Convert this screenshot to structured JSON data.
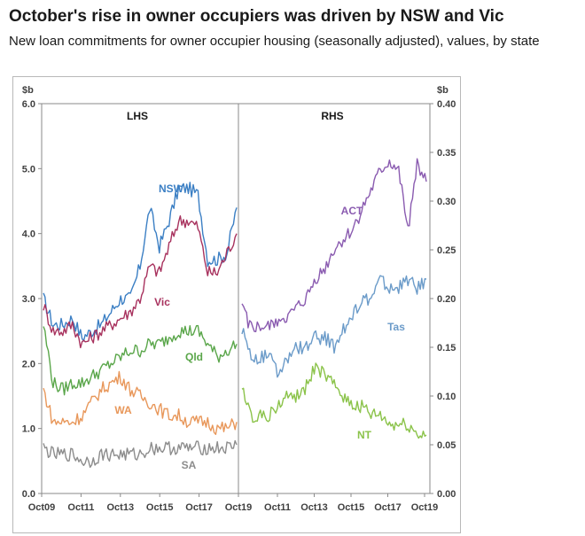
{
  "title": "October's rise in owner occupiers was driven by NSW and Vic",
  "subtitle": "New loan commitments for owner occupier housing (seasonally adjusted), values, by state",
  "chart_data": [
    {
      "type": "line",
      "panel": "LHS",
      "panel_label": "LHS",
      "unit": "$b",
      "ylim": [
        0,
        6
      ],
      "yticks": [
        "0.0",
        "1.0",
        "2.0",
        "3.0",
        "4.0",
        "5.0",
        "6.0"
      ],
      "xticks": [
        "Oct09",
        "Oct11",
        "Oct13",
        "Oct15",
        "Oct17",
        "Oct19"
      ],
      "x_dates": [
        "Oct09",
        "Apr10",
        "Oct10",
        "Apr11",
        "Oct11",
        "Apr12",
        "Oct12",
        "Apr13",
        "Oct13",
        "Apr14",
        "Oct14",
        "Apr15",
        "Oct15",
        "Apr16",
        "Oct16",
        "Apr17",
        "Oct17",
        "Apr18",
        "Oct18",
        "Apr19",
        "Oct19"
      ],
      "series": [
        {
          "name": "NSW",
          "color": "#3b7fc4",
          "values": [
            3.0,
            2.6,
            2.6,
            2.7,
            2.4,
            2.5,
            2.6,
            2.8,
            3.0,
            3.0,
            3.5,
            4.4,
            3.8,
            4.2,
            4.7,
            4.7,
            4.6,
            3.6,
            3.6,
            3.7,
            4.4
          ]
        },
        {
          "name": "Vic",
          "color": "#a8325e",
          "values": [
            2.9,
            2.5,
            2.5,
            2.6,
            2.3,
            2.4,
            2.5,
            2.6,
            2.7,
            2.8,
            3.0,
            3.5,
            3.4,
            3.8,
            4.2,
            4.2,
            4.1,
            3.4,
            3.4,
            3.7,
            4.0
          ]
        },
        {
          "name": "Qld",
          "color": "#5aa64a",
          "values": [
            2.6,
            1.7,
            1.6,
            1.7,
            1.7,
            1.8,
            1.9,
            2.0,
            2.1,
            2.2,
            2.2,
            2.3,
            2.3,
            2.4,
            2.5,
            2.5,
            2.5,
            2.3,
            2.1,
            2.2,
            2.3
          ]
        },
        {
          "name": "WA",
          "color": "#e8975a",
          "values": [
            1.6,
            1.1,
            1.1,
            1.1,
            1.2,
            1.4,
            1.6,
            1.7,
            1.8,
            1.6,
            1.5,
            1.4,
            1.3,
            1.2,
            1.2,
            1.1,
            1.1,
            1.1,
            1.0,
            1.0,
            1.1
          ]
        },
        {
          "name": "SA",
          "color": "#8c8c8c",
          "values": [
            0.7,
            0.6,
            0.6,
            0.6,
            0.5,
            0.5,
            0.6,
            0.6,
            0.6,
            0.6,
            0.6,
            0.7,
            0.7,
            0.7,
            0.7,
            0.7,
            0.7,
            0.7,
            0.7,
            0.7,
            0.75
          ]
        }
      ]
    },
    {
      "type": "line",
      "panel": "RHS",
      "panel_label": "RHS",
      "unit": "$b",
      "ylim": [
        0,
        0.4
      ],
      "yticks": [
        "0.00",
        "0.05",
        "0.10",
        "0.15",
        "0.20",
        "0.25",
        "0.30",
        "0.35",
        "0.40"
      ],
      "xticks": [
        "Oct11",
        "Oct13",
        "Oct15",
        "Oct17",
        "Oct19"
      ],
      "x_dates": [
        "Oct09",
        "Apr10",
        "Oct10",
        "Apr11",
        "Oct11",
        "Apr12",
        "Oct12",
        "Apr13",
        "Oct13",
        "Apr14",
        "Oct14",
        "Apr15",
        "Oct15",
        "Apr16",
        "Oct16",
        "Apr17",
        "Oct17",
        "Apr18",
        "Oct18",
        "Apr19",
        "Oct19"
      ],
      "series": [
        {
          "name": "ACT",
          "color": "#8a5bb0",
          "values": [
            0.19,
            0.17,
            0.17,
            0.17,
            0.18,
            0.18,
            0.19,
            0.2,
            0.22,
            0.23,
            0.25,
            0.26,
            0.27,
            0.29,
            0.31,
            0.33,
            0.34,
            0.33,
            0.27,
            0.34,
            0.32
          ]
        },
        {
          "name": "Tas",
          "color": "#6b9bc9",
          "values": [
            0.17,
            0.14,
            0.14,
            0.14,
            0.12,
            0.14,
            0.15,
            0.15,
            0.16,
            0.16,
            0.15,
            0.17,
            0.18,
            0.2,
            0.2,
            0.22,
            0.21,
            0.21,
            0.22,
            0.21,
            0.22
          ]
        },
        {
          "name": "NT",
          "color": "#8bc34a",
          "values": [
            0.11,
            0.08,
            0.08,
            0.08,
            0.09,
            0.1,
            0.1,
            0.11,
            0.13,
            0.12,
            0.11,
            0.1,
            0.09,
            0.09,
            0.08,
            0.08,
            0.07,
            0.07,
            0.07,
            0.06,
            0.06
          ]
        }
      ]
    }
  ]
}
